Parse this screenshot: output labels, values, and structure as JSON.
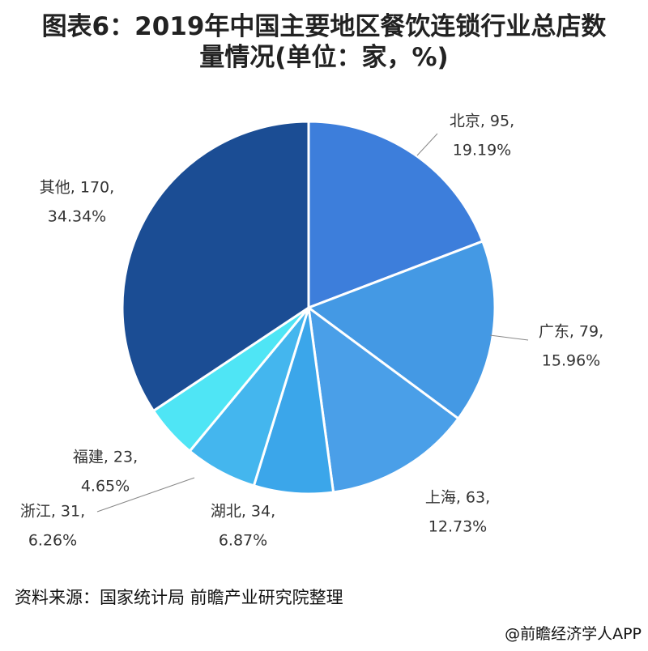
{
  "chart_data": {
    "type": "pie",
    "title": "图表6：2019年中国主要地区餐饮连锁行业总店数量情况(单位：家，%)",
    "categories": [
      "北京",
      "广东",
      "上海",
      "湖北",
      "浙江",
      "福建",
      "其他"
    ],
    "values": [
      95,
      79,
      63,
      34,
      31,
      23,
      170
    ],
    "value_labels": [
      "北京, 95,",
      "广东, 79,",
      "上海, 63,",
      "湖北, 34,",
      "浙江, 31,",
      "福建, 23,",
      "其他, 170,"
    ],
    "percent_labels": [
      "19.19%",
      "15.96%",
      "12.73%",
      "6.87%",
      "6.26%",
      "4.65%",
      "34.34%"
    ],
    "colors": [
      "#3d7edb",
      "#4499e4",
      "#4a9fe8",
      "#3ba6ea",
      "#44b6ee",
      "#4fe5f5",
      "#1b4d94"
    ],
    "source": "资料来源：国家统计局 前瞻产业研究院整理",
    "footer": "@前瞻经济学人APP"
  }
}
